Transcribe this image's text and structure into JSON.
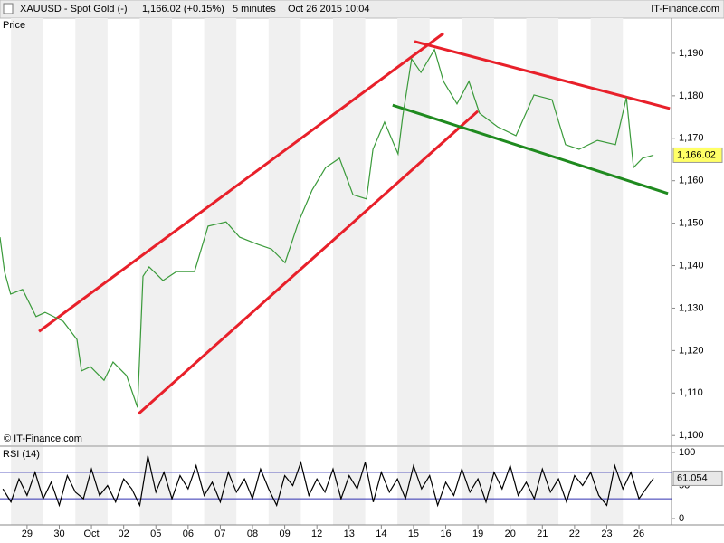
{
  "header": {
    "symbol": "XAUUSD - Spot Gold (-)",
    "quote": "1,166.02 (+0.15%)",
    "interval": "5 minutes",
    "timestamp": "Oct 26 2015 10:04",
    "brand": "IT-Finance.com"
  },
  "chart_data": [
    {
      "type": "line",
      "panel_label": "Price",
      "watermark": "© IT-Finance.com",
      "xlim": [
        -0.84,
        20.01
      ],
      "ylim": [
        1097.7,
        1198.3
      ],
      "yticks": [
        {
          "value": 1100,
          "label": "1,100"
        },
        {
          "value": 1110,
          "label": "1,110"
        },
        {
          "value": 1120,
          "label": "1,120"
        },
        {
          "value": 1130,
          "label": "1,130"
        },
        {
          "value": 1140,
          "label": "1,140"
        },
        {
          "value": 1150,
          "label": "1,150"
        },
        {
          "value": 1160,
          "label": "1,160"
        },
        {
          "value": 1170,
          "label": "1,170"
        },
        {
          "value": 1180,
          "label": "1,180"
        },
        {
          "value": 1190,
          "label": "1,190"
        }
      ],
      "series": [
        {
          "color": "#3a9a3a",
          "x": [
            -0.84,
            -0.7,
            -0.51,
            -0.14,
            0.28,
            0.56,
            1.12,
            1.55,
            1.69,
            1.97,
            2.39,
            2.67,
            3.09,
            3.43,
            3.6,
            3.79,
            4.22,
            4.64,
            5.2,
            5.62,
            6.18,
            6.6,
            7.17,
            7.59,
            8.01,
            8.43,
            8.85,
            9.27,
            9.7,
            10.12,
            10.54,
            10.74,
            11.1,
            11.52,
            11.66,
            11.94,
            12.23,
            12.65,
            12.93,
            13.35,
            13.72,
            14.05,
            14.61,
            15.18,
            15.74,
            16.3,
            16.72,
            17.14,
            17.71,
            18.27,
            18.61,
            18.83,
            19.11,
            19.45
          ],
          "values": [
            1146.7,
            1138.6,
            1133.3,
            1134.4,
            1128,
            1129,
            1126.9,
            1122.6,
            1115.2,
            1116.2,
            1113,
            1117.3,
            1114.1,
            1106.6,
            1137.5,
            1139.7,
            1136.5,
            1138.6,
            1138.6,
            1149.3,
            1150.3,
            1146.7,
            1145,
            1143.9,
            1140.7,
            1150.3,
            1157.8,
            1163.1,
            1165.3,
            1156.7,
            1155.7,
            1167.4,
            1173.8,
            1166.3,
            1174.9,
            1188.7,
            1185.5,
            1190.9,
            1183.4,
            1178.1,
            1183.4,
            1175.9,
            1172.7,
            1170.6,
            1180.2,
            1179.1,
            1168.5,
            1167.4,
            1169.5,
            1168.5,
            1179.6,
            1163.1,
            1165.3,
            1166.02
          ]
        }
      ],
      "last_label": "1,166.02",
      "trendlines": [
        {
          "color": "#e8202a",
          "x": [
            0.37,
            12.93
          ],
          "y": [
            1124.5,
            1194.7
          ]
        },
        {
          "color": "#e8202a",
          "x": [
            3.46,
            14.0
          ],
          "y": [
            1105.1,
            1176.4
          ]
        },
        {
          "color": "#1f8a1f",
          "x": [
            11.35,
            19.9
          ],
          "y": [
            1177.8,
            1157.0
          ]
        },
        {
          "color": "#e8202a",
          "x": [
            12.03,
            19.96
          ],
          "y": [
            1192.8,
            1177.0
          ]
        }
      ]
    },
    {
      "type": "line",
      "panel_label": "RSI (14)",
      "xlim": [
        -0.84,
        20.01
      ],
      "ylim": [
        -9.6,
        108.2
      ],
      "yticks": [
        0,
        50,
        100
      ],
      "levels": [
        30,
        70
      ],
      "level_color": "#3030b0",
      "xticks": [
        {
          "value": 0,
          "label": "29"
        },
        {
          "value": 1,
          "label": "30"
        },
        {
          "value": 2,
          "label": "Oct"
        },
        {
          "value": 3,
          "label": "02"
        },
        {
          "value": 4,
          "label": "05"
        },
        {
          "value": 5,
          "label": "06"
        },
        {
          "value": 6,
          "label": "07"
        },
        {
          "value": 7,
          "label": "08"
        },
        {
          "value": 8,
          "label": "09"
        },
        {
          "value": 9,
          "label": "12"
        },
        {
          "value": 10,
          "label": "13"
        },
        {
          "value": 11,
          "label": "14"
        },
        {
          "value": 12,
          "label": "15"
        },
        {
          "value": 13,
          "label": "16"
        },
        {
          "value": 14,
          "label": "19"
        },
        {
          "value": 15,
          "label": "20"
        },
        {
          "value": 16,
          "label": "21"
        },
        {
          "value": 17,
          "label": "22"
        },
        {
          "value": 18,
          "label": "23"
        },
        {
          "value": 19,
          "label": "26"
        }
      ],
      "series": [
        {
          "color": "#000000",
          "x": [
            -0.75,
            -0.5,
            -0.25,
            0,
            0.25,
            0.5,
            0.75,
            1,
            1.25,
            1.5,
            1.75,
            2,
            2.25,
            2.5,
            2.75,
            3,
            3.25,
            3.5,
            3.75,
            4,
            4.25,
            4.5,
            4.75,
            5,
            5.25,
            5.5,
            5.75,
            6,
            6.25,
            6.5,
            6.75,
            7,
            7.25,
            7.5,
            7.75,
            8,
            8.25,
            8.5,
            8.75,
            9,
            9.25,
            9.5,
            9.75,
            10,
            10.25,
            10.5,
            10.75,
            11,
            11.25,
            11.5,
            11.75,
            12,
            12.25,
            12.5,
            12.75,
            13,
            13.25,
            13.5,
            13.75,
            14,
            14.25,
            14.5,
            14.75,
            15,
            15.25,
            15.5,
            15.75,
            16,
            16.25,
            16.5,
            16.75,
            17,
            17.25,
            17.5,
            17.75,
            18,
            18.25,
            18.5,
            18.75,
            19,
            19.45
          ],
          "values": [
            45,
            25,
            60,
            35,
            70,
            30,
            55,
            20,
            65,
            40,
            30,
            75,
            35,
            50,
            25,
            60,
            45,
            20,
            95,
            40,
            70,
            30,
            65,
            45,
            80,
            35,
            55,
            25,
            70,
            40,
            60,
            30,
            75,
            45,
            20,
            65,
            50,
            85,
            35,
            60,
            40,
            75,
            30,
            65,
            45,
            85,
            25,
            70,
            40,
            60,
            30,
            80,
            45,
            65,
            20,
            55,
            35,
            75,
            40,
            60,
            25,
            70,
            45,
            80,
            35,
            55,
            30,
            75,
            40,
            60,
            25,
            65,
            50,
            70,
            35,
            20,
            80,
            45,
            70,
            30,
            61.054
          ]
        }
      ],
      "last_label": "61.054"
    }
  ]
}
